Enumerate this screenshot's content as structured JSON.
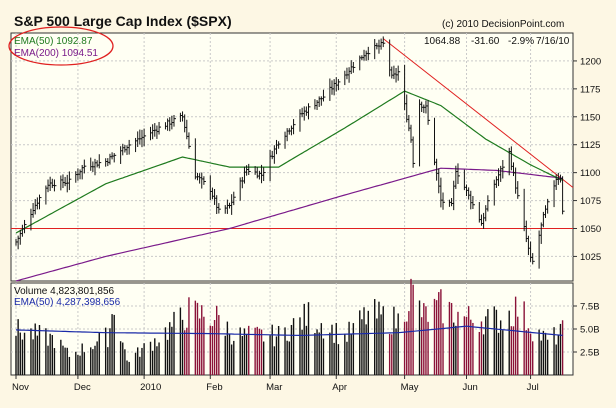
{
  "chart_data": [
    {
      "type": "bar",
      "title": "S&P 500 Large Cap Index ($SPX)",
      "copyright": "(c) 2010 DecisionPoint.com",
      "readout": {
        "close": "1064.88",
        "change": "-31.60",
        "pct": "-2.9%",
        "date": "7/16/10"
      },
      "legend": [
        {
          "label": "EMA(50) 1092.87",
          "color": "#1e7a1e"
        },
        {
          "label": "EMA(200) 1094.51",
          "color": "#7a1a8a"
        }
      ],
      "x_labels": [
        "Nov",
        "Dec",
        "2010",
        "Feb",
        "Mar",
        "Apr",
        "May",
        "Jun",
        "Jul"
      ],
      "y_ticks": [
        1025,
        1050,
        1075,
        1100,
        1125,
        1150,
        1175,
        1200
      ],
      "ylim": [
        1003,
        1225
      ],
      "horizontal_line": 1050,
      "trendline": [
        {
          "x": "Apr 23 2010",
          "y": 1220
        },
        {
          "x": "Jul 16 2010",
          "y": 1094
        }
      ],
      "price_anchors": [
        {
          "date": "Nov 02 2009",
          "y": 1038
        },
        {
          "date": "Nov 04 2009",
          "y": 1045
        },
        {
          "date": "Nov 10 2009",
          "y": 1068
        },
        {
          "date": "Nov 17 2009",
          "y": 1090
        },
        {
          "date": "Nov 27 2009",
          "y": 1092
        },
        {
          "date": "Dec 04 2009",
          "y": 1106
        },
        {
          "date": "Dec 14 2009",
          "y": 1110
        },
        {
          "date": "Dec 24 2009",
          "y": 1124
        },
        {
          "date": "Jan 05 2010",
          "y": 1137
        },
        {
          "date": "Jan 13 2010",
          "y": 1145
        },
        {
          "date": "Jan 19 2010",
          "y": 1150
        },
        {
          "date": "Jan 25 2010",
          "y": 1098
        },
        {
          "date": "Feb 01 2010",
          "y": 1085
        },
        {
          "date": "Feb 05 2010",
          "y": 1065
        },
        {
          "date": "Feb 10 2010",
          "y": 1070
        },
        {
          "date": "Feb 18 2010",
          "y": 1103
        },
        {
          "date": "Feb 25 2010",
          "y": 1098
        },
        {
          "date": "Mar 05 2010",
          "y": 1128
        },
        {
          "date": "Mar 16 2010",
          "y": 1153
        },
        {
          "date": "Mar 26 2010",
          "y": 1168
        },
        {
          "date": "Apr 05 2010",
          "y": 1188
        },
        {
          "date": "Apr 15 2010",
          "y": 1208
        },
        {
          "date": "Apr 23 2010",
          "y": 1215
        },
        {
          "date": "Apr 27 2010",
          "y": 1185
        },
        {
          "date": "Apr 30 2010",
          "y": 1190
        },
        {
          "date": "May 06 2010",
          "y": 1130
        },
        {
          "date": "May 07 2010",
          "y": 1110
        },
        {
          "date": "May 10 2010",
          "y": 1162
        },
        {
          "date": "May 13 2010",
          "y": 1158
        },
        {
          "date": "May 20 2010",
          "y": 1075
        },
        {
          "date": "May 25 2010",
          "y": 1070
        },
        {
          "date": "May 27 2010",
          "y": 1103
        },
        {
          "date": "Jun 08 2010",
          "y": 1055
        },
        {
          "date": "Jun 14 2010",
          "y": 1090
        },
        {
          "date": "Jun 21 2010",
          "y": 1118
        },
        {
          "date": "Jun 25 2010",
          "y": 1078
        },
        {
          "date": "Jul 01 2010",
          "y": 1022
        },
        {
          "date": "Jul 02 2010",
          "y": 1020
        },
        {
          "date": "Jul 07 2010",
          "y": 1060
        },
        {
          "date": "Jul 13 2010",
          "y": 1095
        },
        {
          "date": "Jul 15 2010",
          "y": 1096
        },
        {
          "date": "Jul 16 2010",
          "y": 1064.88
        }
      ],
      "ema50_anchors": [
        {
          "date": "Nov 02 2009",
          "y": 1046
        },
        {
          "date": "Dec 14 2009",
          "y": 1090
        },
        {
          "date": "Jan 19 2010",
          "y": 1114
        },
        {
          "date": "Feb 10 2010",
          "y": 1105
        },
        {
          "date": "Mar 05 2010",
          "y": 1105
        },
        {
          "date": "Apr 05 2010",
          "y": 1140
        },
        {
          "date": "May 03 2010",
          "y": 1173
        },
        {
          "date": "May 20 2010",
          "y": 1160
        },
        {
          "date": "Jun 10 2010",
          "y": 1130
        },
        {
          "date": "Jul 01 2010",
          "y": 1107
        },
        {
          "date": "Jul 16 2010",
          "y": 1093
        }
      ],
      "ema200_anchors": [
        {
          "date": "Nov 02 2009",
          "y": 1003
        },
        {
          "date": "Dec 14 2009",
          "y": 1025
        },
        {
          "date": "Feb 10 2010",
          "y": 1050
        },
        {
          "date": "Apr 05 2010",
          "y": 1080
        },
        {
          "date": "May 20 2010",
          "y": 1104
        },
        {
          "date": "Jun 15 2010",
          "y": 1102
        },
        {
          "date": "Jul 16 2010",
          "y": 1095
        }
      ]
    },
    {
      "type": "bar",
      "legend": [
        {
          "label": "Volume 4,823,801,856",
          "color": "#111111"
        },
        {
          "label": "EMA(50) 4,287,398,656",
          "color": "#1a2aa8"
        }
      ],
      "y_ticks": [
        "2.5B",
        "5.0B",
        "7.5B"
      ],
      "y_tick_values": [
        2.5,
        5.0,
        7.5
      ],
      "ylim": [
        0,
        10
      ],
      "volume_anchors": [
        {
          "date": "Nov 02 2009",
          "y": 5.0
        },
        {
          "date": "Nov 20 2009",
          "y": 4.0
        },
        {
          "date": "Nov 27 2009",
          "y": 2.2
        },
        {
          "date": "Dec 15 2009",
          "y": 4.3
        },
        {
          "date": "Dec 18 2009",
          "y": 7.8
        },
        {
          "date": "Dec 24 2009",
          "y": 1.6
        },
        {
          "date": "Jan 08 2010",
          "y": 4.2
        },
        {
          "date": "Jan 22 2010",
          "y": 7.0
        },
        {
          "date": "Feb 05 2010",
          "y": 6.3
        },
        {
          "date": "Feb 12 2010",
          "y": 4.4
        },
        {
          "date": "Mar 05 2010",
          "y": 4.4
        },
        {
          "date": "Mar 19 2010",
          "y": 6.6
        },
        {
          "date": "Apr 05 2010",
          "y": 4.2
        },
        {
          "date": "Apr 16 2010",
          "y": 6.8
        },
        {
          "date": "Apr 30 2010",
          "y": 6.0
        },
        {
          "date": "May 06 2010",
          "y": 9.3
        },
        {
          "date": "May 07 2010",
          "y": 8.8
        },
        {
          "date": "May 12 2010",
          "y": 6.6
        },
        {
          "date": "May 20 2010",
          "y": 7.6
        },
        {
          "date": "Jun 01 2010",
          "y": 6.3
        },
        {
          "date": "Jun 18 2010",
          "y": 6.2
        },
        {
          "date": "Jun 25 2010",
          "y": 7.6
        },
        {
          "date": "Jul 02 2010",
          "y": 5.2
        },
        {
          "date": "Jul 09 2010",
          "y": 3.8
        },
        {
          "date": "Jul 16 2010",
          "y": 4.8
        }
      ],
      "ema_anchors": [
        {
          "date": "Nov 02 2009",
          "y": 4.9
        },
        {
          "date": "Dec 14 2009",
          "y": 4.6
        },
        {
          "date": "Feb 01 2010",
          "y": 4.5
        },
        {
          "date": "Mar 15 2010",
          "y": 4.3
        },
        {
          "date": "Apr 30 2010",
          "y": 4.6
        },
        {
          "date": "Jun 01 2010",
          "y": 5.3
        },
        {
          "date": "Jul 16 2010",
          "y": 4.3
        }
      ]
    }
  ]
}
